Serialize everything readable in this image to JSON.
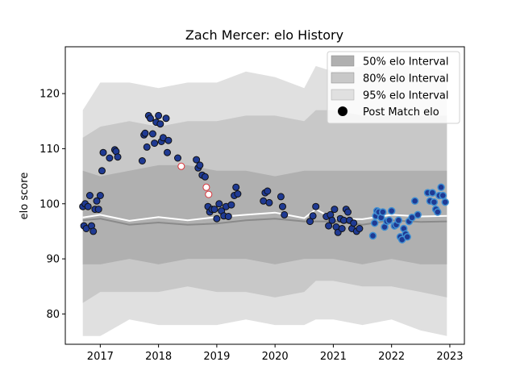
{
  "chart_data": {
    "type": "scatter",
    "title": "Zach Mercer: elo History",
    "xlabel": "",
    "ylabel": "elo score",
    "xlim": [
      2016.4,
      2023.25
    ],
    "ylim": [
      74.5,
      128.5
    ],
    "x_ticks": [
      2017,
      2018,
      2019,
      2020,
      2021,
      2022,
      2023
    ],
    "x_tick_labels": [
      "2017",
      "2018",
      "2019",
      "2020",
      "2021",
      "2022",
      "2023"
    ],
    "y_ticks": [
      80,
      90,
      100,
      110,
      120
    ],
    "y_tick_labels": [
      "80",
      "90",
      "100",
      "110",
      "120"
    ],
    "grid": false,
    "legend_position": "top-right",
    "legend": [
      {
        "label": "50% elo Interval",
        "color": "#b0b0b0",
        "kind": "band"
      },
      {
        "label": "80% elo Interval",
        "color": "#c8c8c8",
        "kind": "band"
      },
      {
        "label": "95% elo Interval",
        "color": "#e0e0e0",
        "kind": "band"
      },
      {
        "label": "Post Match elo",
        "color": "#000000",
        "kind": "point"
      }
    ],
    "colors": {
      "band50": "#b0b0b0",
      "band80": "#c8c8c8",
      "band95": "#e0e0e0",
      "mean_line": "#ffffff",
      "median_line": "#8a8a8a",
      "point_dark": "#1f3a93",
      "point_light": "#3f8fd2",
      "point_open_edge": "#d9343b",
      "point_edge": "#111111"
    },
    "bands": {
      "x": [
        2016.7,
        2017.0,
        2017.5,
        2018.0,
        2018.5,
        2019.0,
        2019.5,
        2020.0,
        2020.5,
        2020.7,
        2021.0,
        2021.5,
        2022.0,
        2022.5,
        2022.95
      ],
      "p95_low": [
        76,
        76,
        79,
        78,
        78,
        78,
        79,
        78,
        78,
        79,
        79,
        78,
        79,
        77,
        76
      ],
      "p95_high": [
        117,
        122,
        122,
        121,
        122,
        122,
        124,
        123,
        121,
        125,
        124,
        125,
        125,
        125,
        124
      ],
      "p80_low": [
        82,
        84,
        84,
        84,
        85,
        84,
        84,
        83,
        84,
        86,
        86,
        85,
        85,
        84,
        83
      ],
      "p80_high": [
        112,
        114,
        115,
        114,
        115,
        115,
        116,
        116,
        115,
        117,
        117,
        116,
        116,
        116,
        116
      ],
      "p50_low": [
        89,
        89,
        90,
        89,
        90,
        90,
        90,
        89,
        90,
        90,
        90,
        89,
        90,
        89,
        89
      ],
      "p50_high": [
        106,
        105,
        106,
        107,
        107,
        106,
        106,
        105,
        106,
        106,
        106,
        106,
        106,
        106,
        106
      ],
      "mean": [
        97.5,
        98.0,
        96.9,
        97.6,
        97.0,
        97.6,
        98.0,
        98.4,
        97.4,
        99.0,
        97.3,
        97.2,
        98.0,
        97.7,
        97.8
      ],
      "median": [
        97.0,
        97.3,
        96.2,
        96.6,
        96.2,
        96.4,
        97.0,
        97.3,
        96.8,
        96.8,
        96.8,
        96.2,
        97.0,
        96.7,
        96.8
      ]
    },
    "series": [
      {
        "style": "dark",
        "x": [
          2016.7,
          2016.72,
          2016.74,
          2016.76,
          2016.79,
          2016.82,
          2016.85,
          2016.88,
          2016.91,
          2016.94,
          2016.97,
          2017.0,
          2017.03,
          2017.05,
          2017.16,
          2017.25,
          2017.27,
          2017.3,
          2017.72,
          2017.75,
          2017.77,
          2017.8,
          2017.83,
          2017.86,
          2017.9,
          2017.93,
          2017.96,
          2018.0,
          2018.03,
          2018.05,
          2018.08,
          2018.13,
          2018.15,
          2018.17,
          2018.33,
          2018.65,
          2018.68,
          2018.71,
          2018.75,
          2018.8,
          2018.85,
          2018.88,
          2018.92,
          2018.96,
          2019.0,
          2019.04,
          2019.08,
          2019.12,
          2019.16,
          2019.2,
          2019.25,
          2019.3,
          2019.33,
          2019.36,
          2019.8,
          2019.83,
          2019.87,
          2019.9,
          2020.1,
          2020.13,
          2020.16,
          2020.6,
          2020.65,
          2020.7,
          2020.88,
          2020.92,
          2020.95,
          2020.98,
          2021.02,
          2021.05,
          2021.08,
          2021.12,
          2021.15,
          2021.18,
          2021.22,
          2021.25,
          2021.28,
          2021.32,
          2021.35,
          2021.4,
          2021.45
        ],
        "y": [
          99.5,
          96.0,
          100.0,
          95.5,
          99.5,
          101.5,
          96.0,
          95.0,
          99.0,
          100.5,
          99.0,
          101.5,
          106.0,
          109.3,
          108.3,
          109.8,
          109.5,
          108.5,
          107.8,
          112.5,
          112.8,
          110.3,
          116.0,
          115.5,
          112.7,
          111.0,
          114.8,
          116.0,
          114.5,
          111.3,
          112.0,
          115.5,
          109.3,
          111.5,
          108.3,
          108.0,
          106.5,
          107.0,
          105.2,
          104.9,
          99.5,
          98.5,
          99.0,
          99.0,
          97.3,
          100.0,
          98.7,
          97.8,
          99.5,
          97.7,
          99.8,
          101.5,
          103.0,
          101.8,
          100.5,
          102.0,
          102.3,
          100.2,
          101.3,
          99.5,
          98.0,
          96.8,
          97.8,
          99.5,
          97.7,
          96.0,
          98.0,
          97.0,
          99.0,
          95.8,
          94.8,
          97.3,
          95.5,
          97.0,
          99.0,
          98.5,
          97.0,
          95.5,
          96.5,
          95.0,
          95.5
        ]
      },
      {
        "style": "open",
        "x": [
          2018.39,
          2018.82,
          2018.86
        ],
        "y": [
          106.8,
          103.0,
          101.7
        ]
      },
      {
        "style": "light",
        "x": [
          2021.68,
          2021.71,
          2021.73,
          2021.75,
          2021.78,
          2021.82,
          2021.85,
          2021.88,
          2021.92,
          2021.96,
          2022.0,
          2022.05,
          2022.08,
          2022.12,
          2022.15,
          2022.18,
          2022.21,
          2022.24,
          2022.27,
          2022.3,
          2022.35,
          2022.4,
          2022.45,
          2022.62,
          2022.66,
          2022.7,
          2022.73,
          2022.76,
          2022.79,
          2022.82,
          2022.85,
          2022.88,
          2022.92
        ],
        "y": [
          94.2,
          96.5,
          97.8,
          98.7,
          98.5,
          97.5,
          98.5,
          95.8,
          96.8,
          97.0,
          98.7,
          96.0,
          96.2,
          97.0,
          94.0,
          93.5,
          95.5,
          94.5,
          94.0,
          96.8,
          97.5,
          100.5,
          98.0,
          102.0,
          100.5,
          102.0,
          100.3,
          99.0,
          98.5,
          101.5,
          103.0,
          101.5,
          100.3
        ]
      }
    ]
  }
}
